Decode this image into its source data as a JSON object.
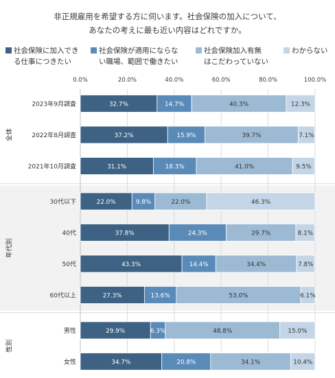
{
  "title_lines": [
    "非正規雇用を希望する方に伺います。社会保険の加入について、",
    "あなたの考えに最も近い内容はどれですか。"
  ],
  "colors": {
    "series": [
      "#3d6283",
      "#5a8bb8",
      "#9cbad4",
      "#c3d5e6"
    ],
    "label_light": "#ffffff",
    "label_dark": "#333333",
    "group_band": "#f2f2f2"
  },
  "chart_data": {
    "type": "bar",
    "orientation": "horizontal",
    "stacked": true,
    "xlim": [
      0,
      100
    ],
    "ticks": [
      "0.0%",
      "20.0%",
      "40.0%",
      "60.0%",
      "80.0%",
      "100.0%"
    ],
    "legend_position": "top",
    "series_labels": [
      "社会保険に加入でき\nる仕事につきたい",
      "社会保険が適用にならな\nい職場、範囲で働きたい",
      "社会保険加入有無\nはこだわっていない",
      "わからない"
    ],
    "groups": [
      {
        "name": "全体",
        "categories": [
          {
            "label": "2023年9月調査",
            "values": [
              32.7,
              14.7,
              40.3,
              12.3
            ]
          },
          {
            "label": "2022年8月調査",
            "values": [
              37.2,
              15.9,
              39.7,
              7.1
            ]
          },
          {
            "label": "2021年10月調査",
            "values": [
              31.1,
              18.3,
              41.0,
              9.5
            ]
          }
        ]
      },
      {
        "name": "年代別",
        "categories": [
          {
            "label": "30代以下",
            "values": [
              22.0,
              9.8,
              22.0,
              46.3
            ]
          },
          {
            "label": "40代",
            "values": [
              37.8,
              24.3,
              29.7,
              8.1
            ]
          },
          {
            "label": "50代",
            "values": [
              43.3,
              14.4,
              34.4,
              7.8
            ]
          },
          {
            "label": "60代以上",
            "values": [
              27.3,
              13.6,
              53.0,
              6.1
            ]
          }
        ]
      },
      {
        "name": "性別",
        "categories": [
          {
            "label": "男性",
            "values": [
              29.9,
              6.3,
              48.8,
              15.0
            ]
          },
          {
            "label": "女性",
            "values": [
              34.7,
              20.8,
              34.1,
              10.4
            ]
          }
        ]
      }
    ]
  }
}
